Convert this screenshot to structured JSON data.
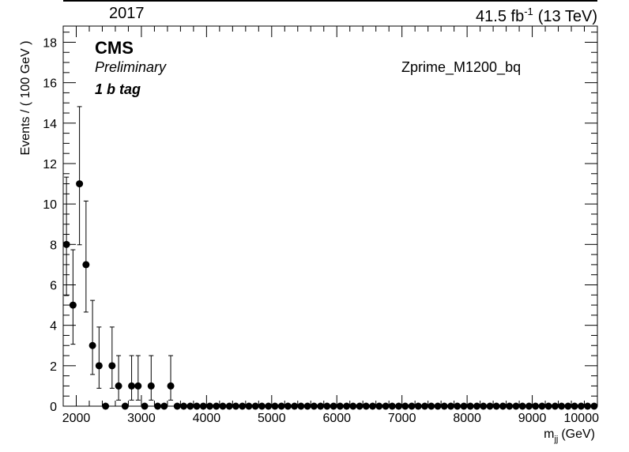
{
  "header": {
    "year": "2017",
    "lumi_value": "41.5 fb",
    "lumi_exp": "-1",
    "energy": "(13 TeV)"
  },
  "labels": {
    "experiment": "CMS",
    "status": "Preliminary",
    "category": "1 b tag",
    "sample": "Zprime_M1200_bq"
  },
  "chart_data": {
    "type": "scatter",
    "title": "",
    "xlabel_main": "m",
    "xlabel_sub": "jj",
    "xlabel_unit": "(GeV)",
    "ylabel": "Events / ( 100 GeV )",
    "xlim": [
      1800,
      10000
    ],
    "ylim": [
      0,
      18.8
    ],
    "x_ticks": [
      2000,
      3000,
      4000,
      5000,
      6000,
      7000,
      8000,
      9000,
      10000
    ],
    "y_ticks": [
      0,
      2,
      4,
      6,
      8,
      10,
      12,
      14,
      16,
      18
    ],
    "x_tick_labels": [
      "2000",
      "3000",
      "4000",
      "5000",
      "6000",
      "7000",
      "8000",
      "9000",
      "10000"
    ],
    "y_tick_labels": [
      "0",
      "2",
      "4",
      "6",
      "8",
      "10",
      "12",
      "14",
      "16",
      "18"
    ],
    "bin_width": 100,
    "x": [
      1850,
      1950,
      2050,
      2150,
      2250,
      2350,
      2450,
      2550,
      2650,
      2750,
      2850,
      2950,
      3050,
      3150,
      3250,
      3350,
      3450,
      3550,
      3650,
      3750,
      3850,
      3950,
      4050,
      4150,
      4250,
      4350,
      4450,
      4550,
      4650,
      4750,
      4850,
      4950,
      5050,
      5150,
      5250,
      5350,
      5450,
      5550,
      5650,
      5750,
      5850,
      5950,
      6050,
      6150,
      6250,
      6350,
      6450,
      6550,
      6650,
      6750,
      6850,
      6950,
      7050,
      7150,
      7250,
      7350,
      7450,
      7550,
      7650,
      7750,
      7850,
      7950,
      8050,
      8150,
      8250,
      8350,
      8450,
      8550,
      8650,
      8750,
      8850,
      8950,
      9050,
      9150,
      9250,
      9350,
      9450,
      9550,
      9650,
      9750,
      9850,
      9950
    ],
    "y": [
      8,
      5,
      11,
      7,
      3,
      2,
      0,
      2,
      1,
      0,
      1,
      1,
      0,
      1,
      0,
      0,
      1,
      0,
      0,
      0,
      0,
      0,
      0,
      0,
      0,
      0,
      0,
      0,
      0,
      0,
      0,
      0,
      0,
      0,
      0,
      0,
      0,
      0,
      0,
      0,
      0,
      0,
      0,
      0,
      0,
      0,
      0,
      0,
      0,
      0,
      0,
      0,
      0,
      0,
      0,
      0,
      0,
      0,
      0,
      0,
      0,
      0,
      0,
      0,
      0,
      0,
      0,
      0,
      0,
      0,
      0,
      0,
      0,
      0,
      0,
      0,
      0,
      0,
      0,
      0,
      0,
      0
    ],
    "grid": false,
    "legend": "none"
  }
}
